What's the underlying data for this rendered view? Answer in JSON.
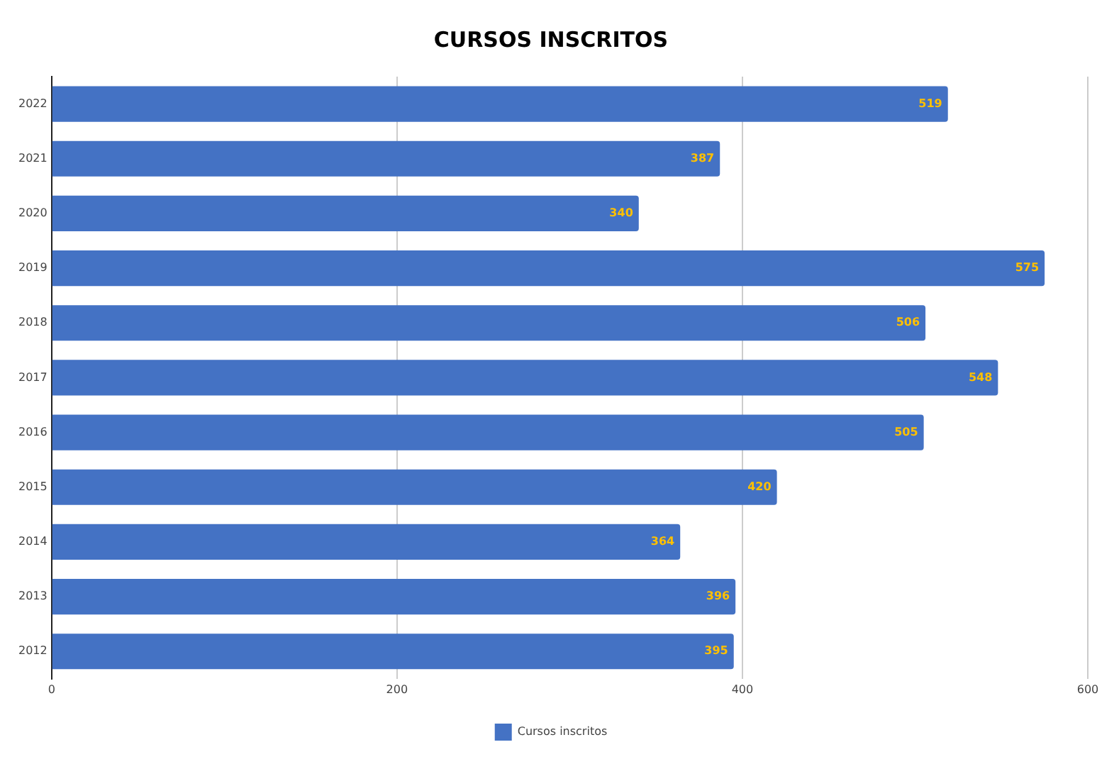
{
  "chart_data": {
    "type": "bar",
    "title": "CURSOS INSCRITOS",
    "orientation": "horizontal",
    "categories": [
      "2022",
      "2021",
      "2020",
      "2019",
      "2018",
      "2017",
      "2016",
      "2015",
      "2014",
      "2013",
      "2012"
    ],
    "series": [
      {
        "name": "Cursos inscritos",
        "color": "#4472c4",
        "values": [
          519,
          387,
          340,
          575,
          506,
          548,
          505,
          420,
          364,
          396,
          395
        ]
      }
    ],
    "xlim": [
      0,
      600
    ],
    "xticks": [
      0,
      200,
      400,
      600
    ],
    "grid": "x",
    "legend": "bottom",
    "data_labels": true
  }
}
